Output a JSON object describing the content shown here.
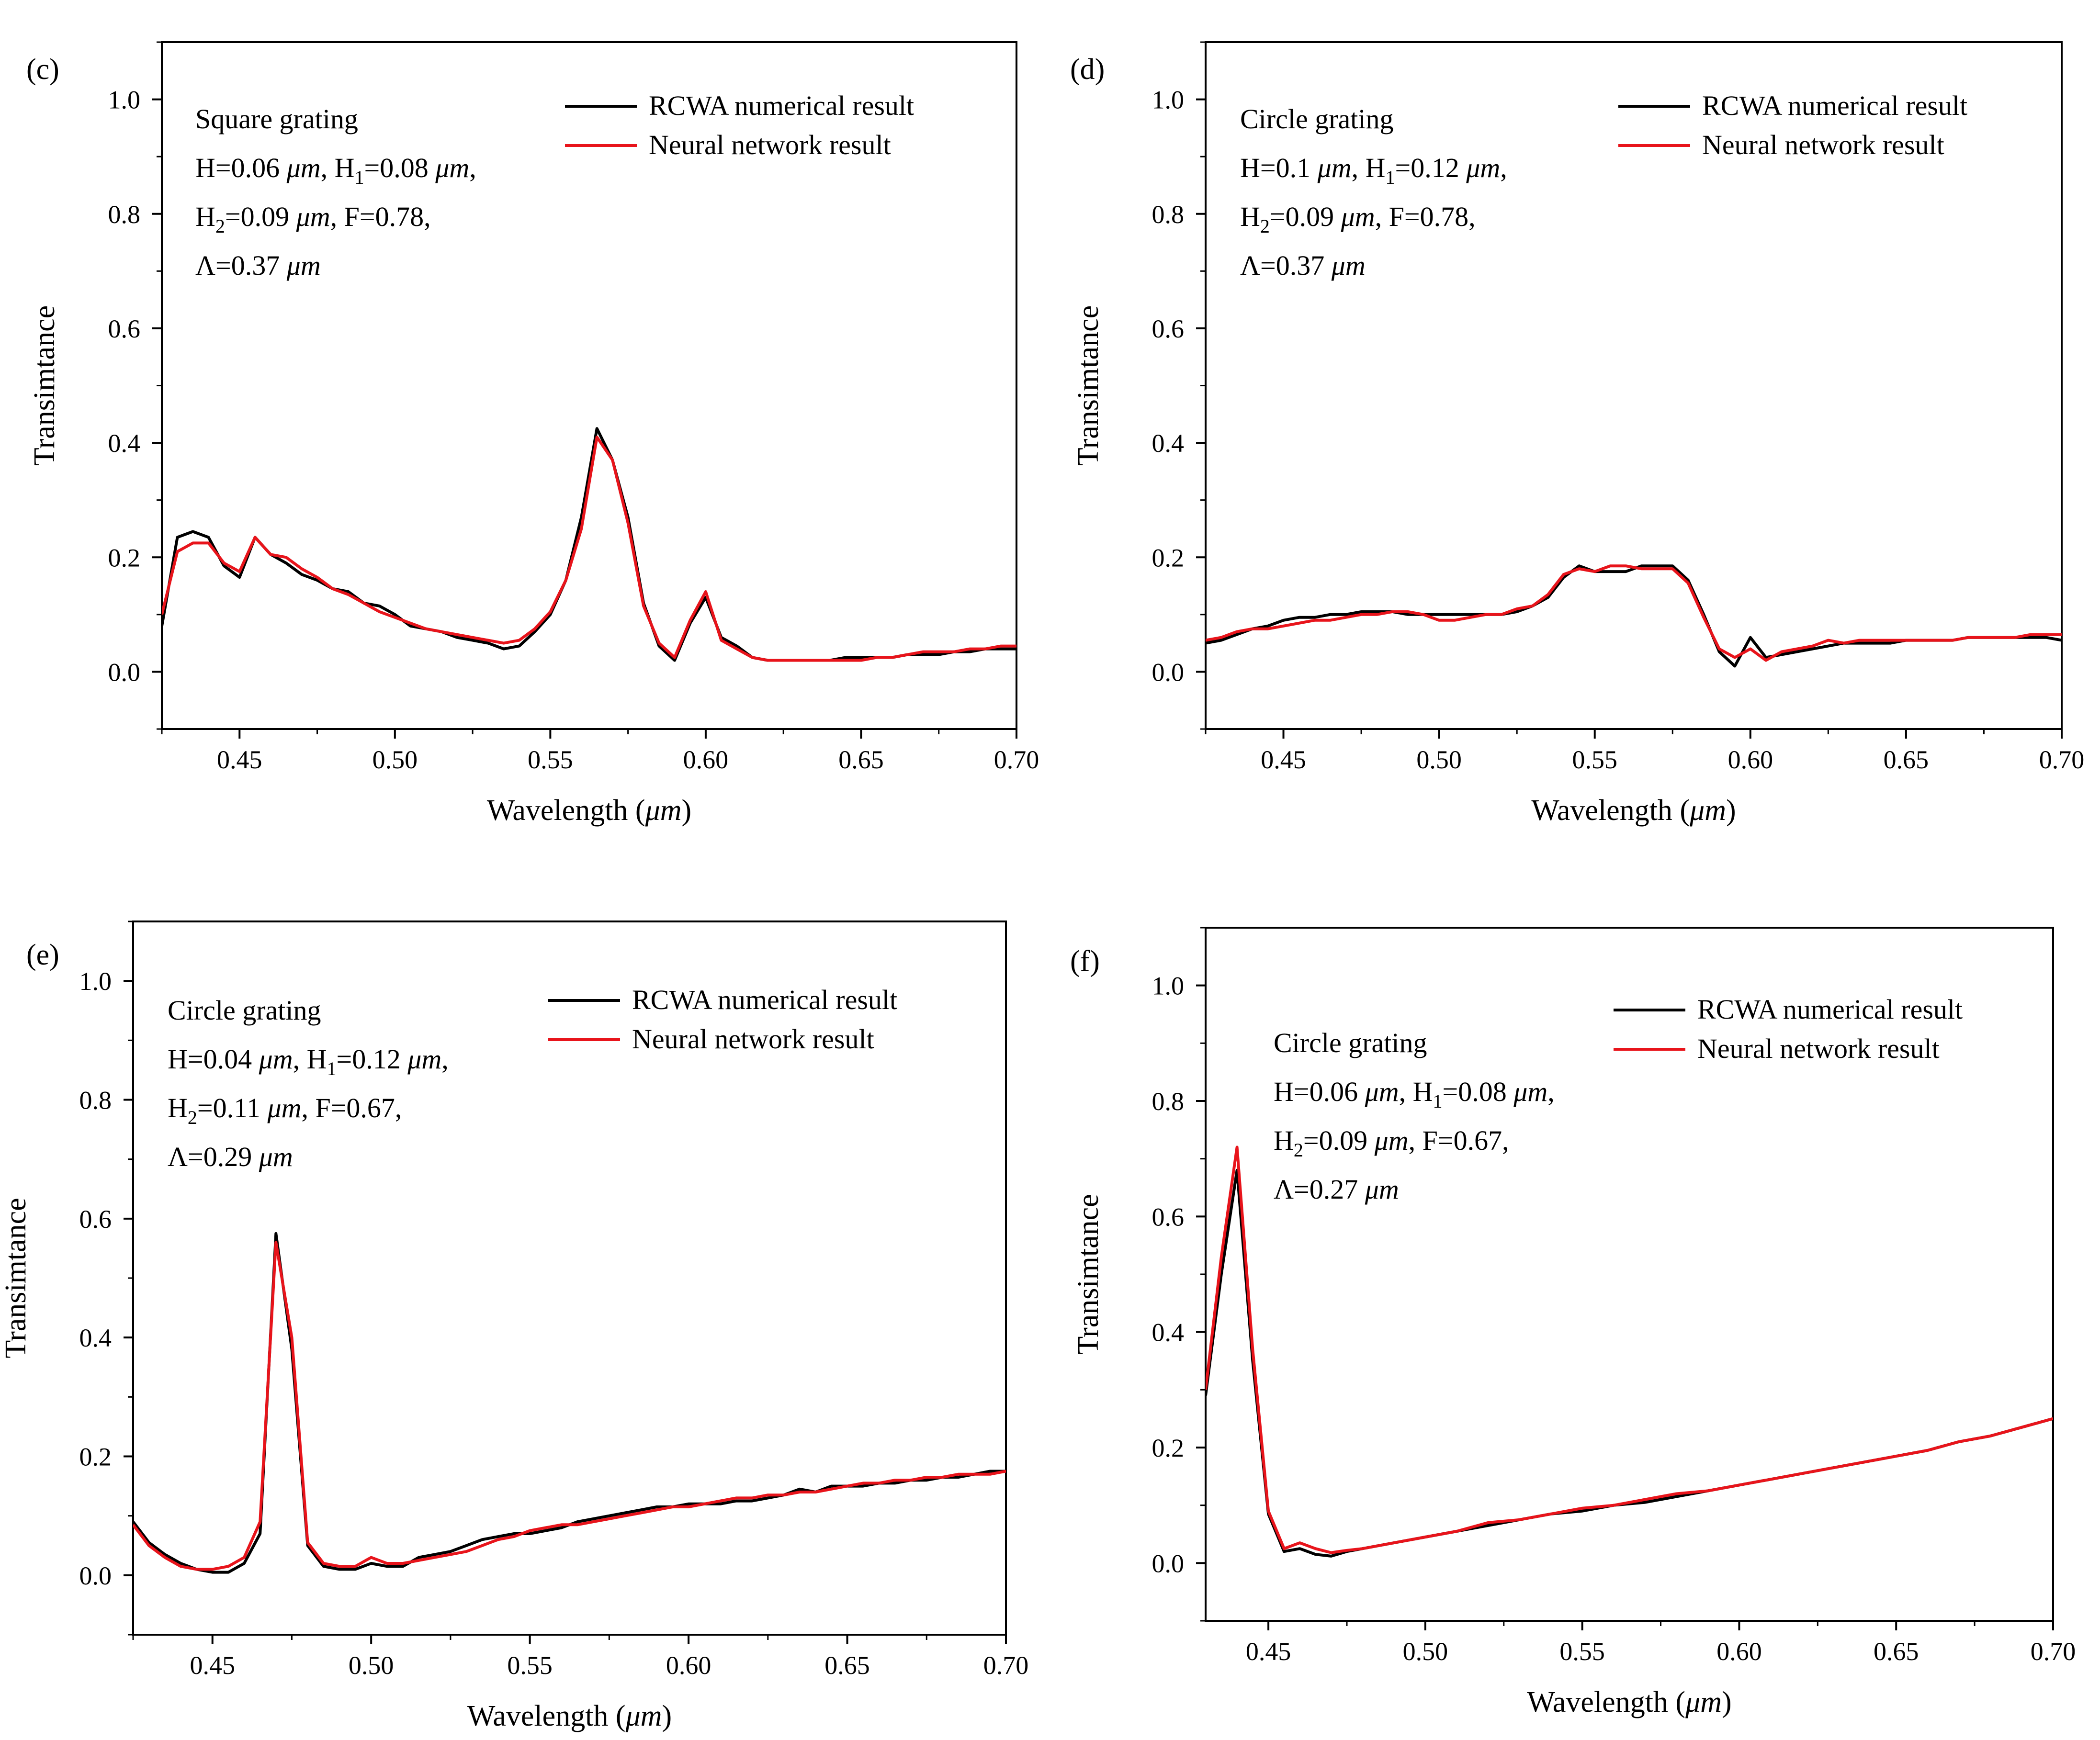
{
  "colors": {
    "rcwa": "#000000",
    "neural": "#e8141b",
    "axis": "#000000",
    "background": "#ffffff"
  },
  "chart_data": [
    {
      "type": "line",
      "panel": "(c)",
      "xlabel": "Wavelength",
      "xunit": "μm",
      "ylabel": "Transimtance",
      "xlim": [
        0.425,
        0.7
      ],
      "ylim": [
        -0.1,
        1.1
      ],
      "xticks": [
        "0.45",
        "0.50",
        "0.55",
        "0.60",
        "0.65",
        "0.70"
      ],
      "yticks": [
        "0.0",
        "0.2",
        "0.4",
        "0.6",
        "0.8",
        "1.0"
      ],
      "legend": {
        "position": "top-right",
        "entries": [
          "RCWA numerical result",
          "Neural network result"
        ]
      },
      "annotation": {
        "title": "Square grating",
        "l1_a": "H=0.06",
        "l1_b": ", H",
        "l1_sub": "1",
        "l1_c": "=0.08",
        "l1_d": ",",
        "l2_a": "H",
        "l2_sub": "2",
        "l2_b": "=0.09",
        "l2_c": ", F=0.78,",
        "l3_a": "Λ=0.37",
        "unit": "μm"
      },
      "series": [
        {
          "name": "RCWA numerical result",
          "x": [
            0.425,
            0.43,
            0.435,
            0.44,
            0.445,
            0.45,
            0.455,
            0.46,
            0.465,
            0.47,
            0.475,
            0.48,
            0.485,
            0.49,
            0.495,
            0.5,
            0.505,
            0.51,
            0.515,
            0.52,
            0.525,
            0.53,
            0.535,
            0.54,
            0.545,
            0.55,
            0.555,
            0.56,
            0.565,
            0.57,
            0.575,
            0.58,
            0.585,
            0.59,
            0.595,
            0.6,
            0.605,
            0.61,
            0.615,
            0.62,
            0.625,
            0.63,
            0.635,
            0.64,
            0.645,
            0.65,
            0.655,
            0.66,
            0.665,
            0.67,
            0.675,
            0.68,
            0.685,
            0.69,
            0.695,
            0.7
          ],
          "y": [
            0.08,
            0.235,
            0.245,
            0.235,
            0.185,
            0.165,
            0.235,
            0.205,
            0.19,
            0.17,
            0.16,
            0.145,
            0.14,
            0.12,
            0.115,
            0.1,
            0.08,
            0.075,
            0.07,
            0.06,
            0.055,
            0.05,
            0.04,
            0.045,
            0.07,
            0.1,
            0.16,
            0.27,
            0.425,
            0.37,
            0.27,
            0.12,
            0.045,
            0.02,
            0.085,
            0.13,
            0.06,
            0.045,
            0.025,
            0.02,
            0.02,
            0.02,
            0.02,
            0.02,
            0.025,
            0.025,
            0.025,
            0.025,
            0.03,
            0.03,
            0.03,
            0.035,
            0.035,
            0.04,
            0.04,
            0.04
          ]
        },
        {
          "name": "Neural network result",
          "x": [
            0.425,
            0.43,
            0.435,
            0.44,
            0.445,
            0.45,
            0.455,
            0.46,
            0.465,
            0.47,
            0.475,
            0.48,
            0.485,
            0.49,
            0.495,
            0.5,
            0.505,
            0.51,
            0.515,
            0.52,
            0.525,
            0.53,
            0.535,
            0.54,
            0.545,
            0.55,
            0.555,
            0.56,
            0.565,
            0.57,
            0.575,
            0.58,
            0.585,
            0.59,
            0.595,
            0.6,
            0.605,
            0.61,
            0.615,
            0.62,
            0.625,
            0.63,
            0.635,
            0.64,
            0.645,
            0.65,
            0.655,
            0.66,
            0.665,
            0.67,
            0.675,
            0.68,
            0.685,
            0.69,
            0.695,
            0.7
          ],
          "y": [
            0.1,
            0.21,
            0.225,
            0.225,
            0.19,
            0.175,
            0.235,
            0.205,
            0.2,
            0.18,
            0.165,
            0.145,
            0.135,
            0.12,
            0.105,
            0.095,
            0.085,
            0.075,
            0.07,
            0.065,
            0.06,
            0.055,
            0.05,
            0.055,
            0.075,
            0.105,
            0.16,
            0.25,
            0.41,
            0.37,
            0.26,
            0.115,
            0.05,
            0.025,
            0.09,
            0.14,
            0.055,
            0.04,
            0.025,
            0.02,
            0.02,
            0.02,
            0.02,
            0.02,
            0.02,
            0.02,
            0.025,
            0.025,
            0.03,
            0.035,
            0.035,
            0.035,
            0.04,
            0.04,
            0.045,
            0.045
          ]
        }
      ]
    },
    {
      "type": "line",
      "panel": "(d)",
      "xlabel": "Wavelength",
      "xunit": "μm",
      "ylabel": "Transimtance",
      "xlim": [
        0.425,
        0.7
      ],
      "ylim": [
        -0.1,
        1.1
      ],
      "xticks": [
        "0.45",
        "0.50",
        "0.55",
        "0.60",
        "0.65",
        "0.70"
      ],
      "yticks": [
        "0.0",
        "0.2",
        "0.4",
        "0.6",
        "0.8",
        "1.0"
      ],
      "legend": {
        "position": "top-right",
        "entries": [
          "RCWA numerical result",
          "Neural network result"
        ]
      },
      "annotation": {
        "title": "Circle grating",
        "l1_a": "H=0.1",
        "l1_b": ", H",
        "l1_sub": "1",
        "l1_c": "=0.12",
        "l1_d": ",",
        "l2_a": "H",
        "l2_sub": "2",
        "l2_b": "=0.09",
        "l2_c": ", F=0.78,",
        "l3_a": "Λ=0.37",
        "unit": "μm"
      },
      "series": [
        {
          "name": "RCWA numerical result",
          "x": [
            0.425,
            0.43,
            0.435,
            0.44,
            0.445,
            0.45,
            0.455,
            0.46,
            0.465,
            0.47,
            0.475,
            0.48,
            0.485,
            0.49,
            0.495,
            0.5,
            0.505,
            0.51,
            0.515,
            0.52,
            0.525,
            0.53,
            0.535,
            0.54,
            0.545,
            0.55,
            0.555,
            0.56,
            0.565,
            0.57,
            0.575,
            0.58,
            0.585,
            0.59,
            0.595,
            0.6,
            0.605,
            0.61,
            0.615,
            0.62,
            0.625,
            0.63,
            0.635,
            0.64,
            0.645,
            0.65,
            0.655,
            0.66,
            0.665,
            0.67,
            0.675,
            0.68,
            0.685,
            0.69,
            0.695,
            0.7
          ],
          "y": [
            0.05,
            0.055,
            0.065,
            0.075,
            0.08,
            0.09,
            0.095,
            0.095,
            0.1,
            0.1,
            0.105,
            0.105,
            0.105,
            0.1,
            0.1,
            0.1,
            0.1,
            0.1,
            0.1,
            0.1,
            0.105,
            0.115,
            0.13,
            0.165,
            0.185,
            0.175,
            0.175,
            0.175,
            0.185,
            0.185,
            0.185,
            0.16,
            0.1,
            0.035,
            0.01,
            0.06,
            0.025,
            0.03,
            0.035,
            0.04,
            0.045,
            0.05,
            0.05,
            0.05,
            0.05,
            0.055,
            0.055,
            0.055,
            0.055,
            0.06,
            0.06,
            0.06,
            0.06,
            0.06,
            0.06,
            0.055
          ]
        },
        {
          "name": "Neural network result",
          "x": [
            0.425,
            0.43,
            0.435,
            0.44,
            0.445,
            0.45,
            0.455,
            0.46,
            0.465,
            0.47,
            0.475,
            0.48,
            0.485,
            0.49,
            0.495,
            0.5,
            0.505,
            0.51,
            0.515,
            0.52,
            0.525,
            0.53,
            0.535,
            0.54,
            0.545,
            0.55,
            0.555,
            0.56,
            0.565,
            0.57,
            0.575,
            0.58,
            0.585,
            0.59,
            0.595,
            0.6,
            0.605,
            0.61,
            0.615,
            0.62,
            0.625,
            0.63,
            0.635,
            0.64,
            0.645,
            0.65,
            0.655,
            0.66,
            0.665,
            0.67,
            0.675,
            0.68,
            0.685,
            0.69,
            0.695,
            0.7
          ],
          "y": [
            0.055,
            0.06,
            0.07,
            0.075,
            0.075,
            0.08,
            0.085,
            0.09,
            0.09,
            0.095,
            0.1,
            0.1,
            0.105,
            0.105,
            0.1,
            0.09,
            0.09,
            0.095,
            0.1,
            0.1,
            0.11,
            0.115,
            0.135,
            0.17,
            0.18,
            0.175,
            0.185,
            0.185,
            0.18,
            0.18,
            0.18,
            0.155,
            0.095,
            0.04,
            0.025,
            0.04,
            0.02,
            0.035,
            0.04,
            0.045,
            0.055,
            0.05,
            0.055,
            0.055,
            0.055,
            0.055,
            0.055,
            0.055,
            0.055,
            0.06,
            0.06,
            0.06,
            0.06,
            0.065,
            0.065,
            0.065
          ]
        }
      ]
    },
    {
      "type": "line",
      "panel": "(e)",
      "xlabel": "Wavelength",
      "xunit": "μm",
      "ylabel": "Transimtance",
      "xlim": [
        0.425,
        0.7
      ],
      "ylim": [
        -0.1,
        1.1
      ],
      "xticks": [
        "0.45",
        "0.50",
        "0.55",
        "0.60",
        "0.65",
        "0.70"
      ],
      "yticks": [
        "0.0",
        "0.2",
        "0.4",
        "0.6",
        "0.8",
        "1.0"
      ],
      "legend": {
        "position": "top-right",
        "entries": [
          "RCWA numerical result",
          "Neural network result"
        ]
      },
      "annotation": {
        "title": "Circle grating",
        "l1_a": "H=0.04",
        "l1_b": ", H",
        "l1_sub": "1",
        "l1_c": "=0.12",
        "l1_d": ",",
        "l2_a": "H",
        "l2_sub": "2",
        "l2_b": "=0.11",
        "l2_c": ", F=0.67,",
        "l3_a": "Λ=0.29",
        "unit": "μm"
      },
      "series": [
        {
          "name": "RCWA numerical result",
          "x": [
            0.425,
            0.43,
            0.435,
            0.44,
            0.445,
            0.45,
            0.455,
            0.46,
            0.465,
            0.47,
            0.475,
            0.48,
            0.485,
            0.49,
            0.495,
            0.5,
            0.505,
            0.51,
            0.515,
            0.52,
            0.525,
            0.53,
            0.535,
            0.54,
            0.545,
            0.55,
            0.555,
            0.56,
            0.565,
            0.57,
            0.575,
            0.58,
            0.585,
            0.59,
            0.595,
            0.6,
            0.605,
            0.61,
            0.615,
            0.62,
            0.625,
            0.63,
            0.635,
            0.64,
            0.645,
            0.65,
            0.655,
            0.66,
            0.665,
            0.67,
            0.675,
            0.68,
            0.685,
            0.69,
            0.695,
            0.7
          ],
          "y": [
            0.09,
            0.055,
            0.035,
            0.02,
            0.01,
            0.005,
            0.005,
            0.02,
            0.07,
            0.575,
            0.38,
            0.05,
            0.015,
            0.01,
            0.01,
            0.02,
            0.015,
            0.015,
            0.03,
            0.035,
            0.04,
            0.05,
            0.06,
            0.065,
            0.07,
            0.07,
            0.075,
            0.08,
            0.09,
            0.095,
            0.1,
            0.105,
            0.11,
            0.115,
            0.115,
            0.12,
            0.12,
            0.12,
            0.125,
            0.125,
            0.13,
            0.135,
            0.145,
            0.14,
            0.15,
            0.15,
            0.15,
            0.155,
            0.155,
            0.16,
            0.16,
            0.165,
            0.165,
            0.17,
            0.175,
            0.175
          ]
        },
        {
          "name": "Neural network result",
          "x": [
            0.425,
            0.43,
            0.435,
            0.44,
            0.445,
            0.45,
            0.455,
            0.46,
            0.465,
            0.47,
            0.475,
            0.48,
            0.485,
            0.49,
            0.495,
            0.5,
            0.505,
            0.51,
            0.515,
            0.52,
            0.525,
            0.53,
            0.535,
            0.54,
            0.545,
            0.55,
            0.555,
            0.56,
            0.565,
            0.57,
            0.575,
            0.58,
            0.585,
            0.59,
            0.595,
            0.6,
            0.605,
            0.61,
            0.615,
            0.62,
            0.625,
            0.63,
            0.635,
            0.64,
            0.645,
            0.65,
            0.655,
            0.66,
            0.665,
            0.67,
            0.675,
            0.68,
            0.685,
            0.69,
            0.695,
            0.7
          ],
          "y": [
            0.085,
            0.05,
            0.03,
            0.015,
            0.01,
            0.01,
            0.015,
            0.03,
            0.09,
            0.56,
            0.4,
            0.055,
            0.02,
            0.015,
            0.015,
            0.03,
            0.02,
            0.02,
            0.025,
            0.03,
            0.035,
            0.04,
            0.05,
            0.06,
            0.065,
            0.075,
            0.08,
            0.085,
            0.085,
            0.09,
            0.095,
            0.1,
            0.105,
            0.11,
            0.115,
            0.115,
            0.12,
            0.125,
            0.13,
            0.13,
            0.135,
            0.135,
            0.14,
            0.14,
            0.145,
            0.15,
            0.155,
            0.155,
            0.16,
            0.16,
            0.165,
            0.165,
            0.17,
            0.17,
            0.17,
            0.175
          ]
        }
      ]
    },
    {
      "type": "line",
      "panel": "(f)",
      "xlabel": "Wavelength",
      "xunit": "μm",
      "ylabel": "Transimtance",
      "xlim": [
        0.43,
        0.7
      ],
      "ylim": [
        -0.1,
        1.1
      ],
      "xticks": [
        "0.45",
        "0.50",
        "0.55",
        "0.60",
        "0.65",
        "0.70"
      ],
      "yticks": [
        "0.0",
        "0.2",
        "0.4",
        "0.6",
        "0.8",
        "1.0"
      ],
      "legend": {
        "position": "top-right",
        "entries": [
          "RCWA numerical result",
          "Neural network result"
        ]
      },
      "annotation": {
        "title": "Circle grating",
        "l1_a": "H=0.06",
        "l1_b": ", H",
        "l1_sub": "1",
        "l1_c": "=0.08",
        "l1_d": ",",
        "l2_a": "H",
        "l2_sub": "2",
        "l2_b": "=0.09",
        "l2_c": ", F=0.67,",
        "l3_a": "Λ=0.27",
        "unit": "μm"
      },
      "series": [
        {
          "name": "RCWA numerical result",
          "x": [
            0.43,
            0.435,
            0.44,
            0.445,
            0.45,
            0.455,
            0.46,
            0.465,
            0.47,
            0.475,
            0.48,
            0.49,
            0.5,
            0.51,
            0.52,
            0.53,
            0.54,
            0.55,
            0.56,
            0.57,
            0.58,
            0.59,
            0.6,
            0.61,
            0.62,
            0.63,
            0.64,
            0.65,
            0.66,
            0.67,
            0.68,
            0.69,
            0.7
          ],
          "y": [
            0.29,
            0.5,
            0.68,
            0.35,
            0.085,
            0.02,
            0.025,
            0.015,
            0.012,
            0.02,
            0.025,
            0.035,
            0.045,
            0.055,
            0.065,
            0.075,
            0.085,
            0.09,
            0.1,
            0.105,
            0.115,
            0.125,
            0.135,
            0.145,
            0.155,
            0.165,
            0.175,
            0.185,
            0.195,
            0.21,
            0.22,
            0.235,
            0.25
          ]
        },
        {
          "name": "Neural network result",
          "x": [
            0.43,
            0.435,
            0.44,
            0.445,
            0.45,
            0.455,
            0.46,
            0.465,
            0.47,
            0.475,
            0.48,
            0.49,
            0.5,
            0.51,
            0.52,
            0.53,
            0.54,
            0.55,
            0.56,
            0.57,
            0.58,
            0.59,
            0.6,
            0.61,
            0.62,
            0.63,
            0.64,
            0.65,
            0.66,
            0.67,
            0.68,
            0.69,
            0.7
          ],
          "y": [
            0.3,
            0.53,
            0.72,
            0.37,
            0.09,
            0.025,
            0.035,
            0.025,
            0.018,
            0.022,
            0.025,
            0.035,
            0.045,
            0.055,
            0.07,
            0.075,
            0.085,
            0.095,
            0.1,
            0.11,
            0.12,
            0.125,
            0.135,
            0.145,
            0.155,
            0.165,
            0.175,
            0.185,
            0.195,
            0.21,
            0.22,
            0.235,
            0.25
          ]
        }
      ]
    }
  ]
}
